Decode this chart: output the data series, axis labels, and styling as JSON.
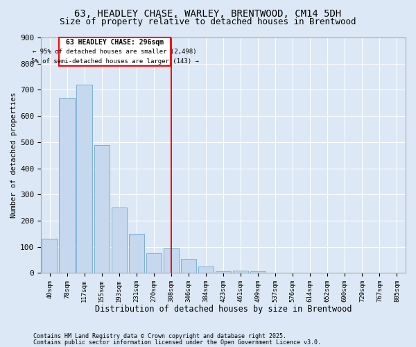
{
  "title": "63, HEADLEY CHASE, WARLEY, BRENTWOOD, CM14 5DH",
  "subtitle": "Size of property relative to detached houses in Brentwood",
  "xlabel": "Distribution of detached houses by size in Brentwood",
  "ylabel": "Number of detached properties",
  "bar_color": "#c5d8ed",
  "bar_edge_color": "#7aafd4",
  "vline_color": "red",
  "categories": [
    "40sqm",
    "78sqm",
    "117sqm",
    "155sqm",
    "193sqm",
    "231sqm",
    "270sqm",
    "308sqm",
    "346sqm",
    "384sqm",
    "423sqm",
    "461sqm",
    "499sqm",
    "537sqm",
    "576sqm",
    "614sqm",
    "652sqm",
    "690sqm",
    "729sqm",
    "767sqm",
    "805sqm"
  ],
  "values": [
    130,
    670,
    720,
    490,
    250,
    150,
    75,
    95,
    55,
    25,
    5,
    10,
    5,
    0,
    0,
    0,
    0,
    0,
    0,
    0,
    0
  ],
  "ylim": [
    0,
    900
  ],
  "yticks": [
    0,
    100,
    200,
    300,
    400,
    500,
    600,
    700,
    800,
    900
  ],
  "annotation_title": "63 HEADLEY CHASE: 296sqm",
  "annotation_line1": "← 95% of detached houses are smaller (2,498)",
  "annotation_line2": "5% of semi-detached houses are larger (143) →",
  "footnote1": "Contains HM Land Registry data © Crown copyright and database right 2025.",
  "footnote2": "Contains public sector information licensed under the Open Government Licence v3.0.",
  "background_color": "#dce8f5",
  "grid_color": "white",
  "title_fontsize": 10,
  "subtitle_fontsize": 9,
  "vline_index": 7
}
